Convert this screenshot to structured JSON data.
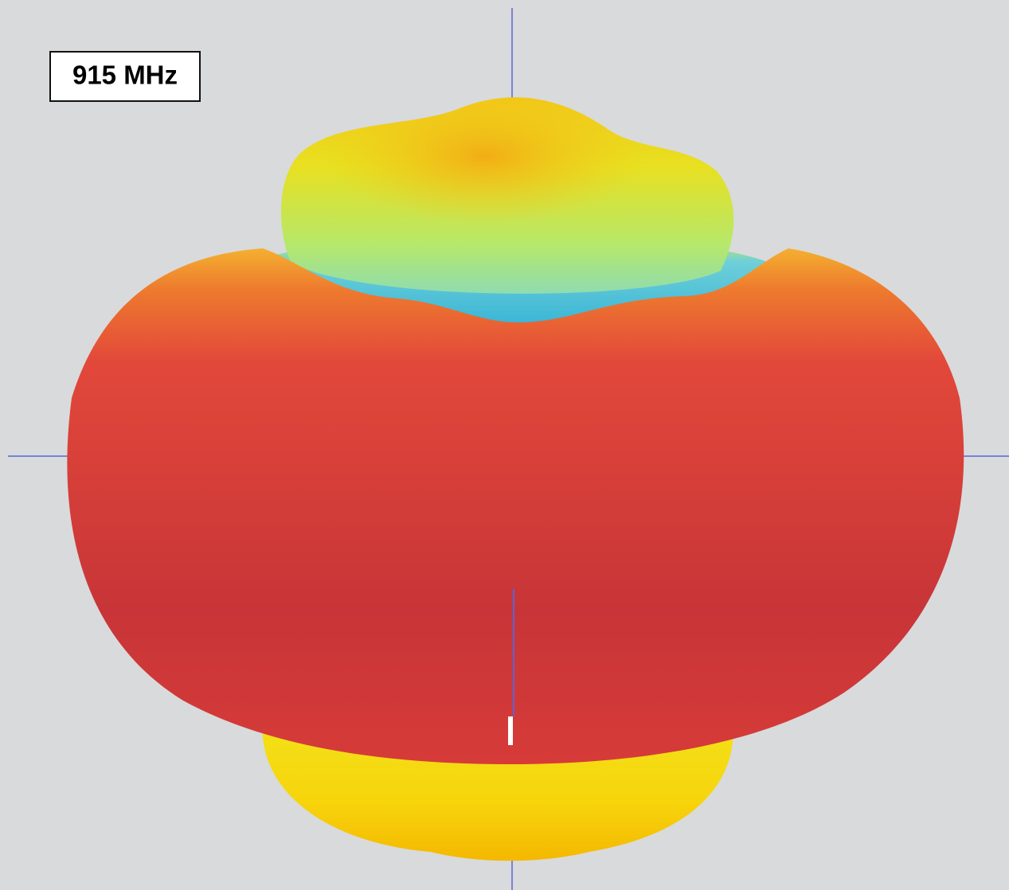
{
  "label": "915 MHz"
}
